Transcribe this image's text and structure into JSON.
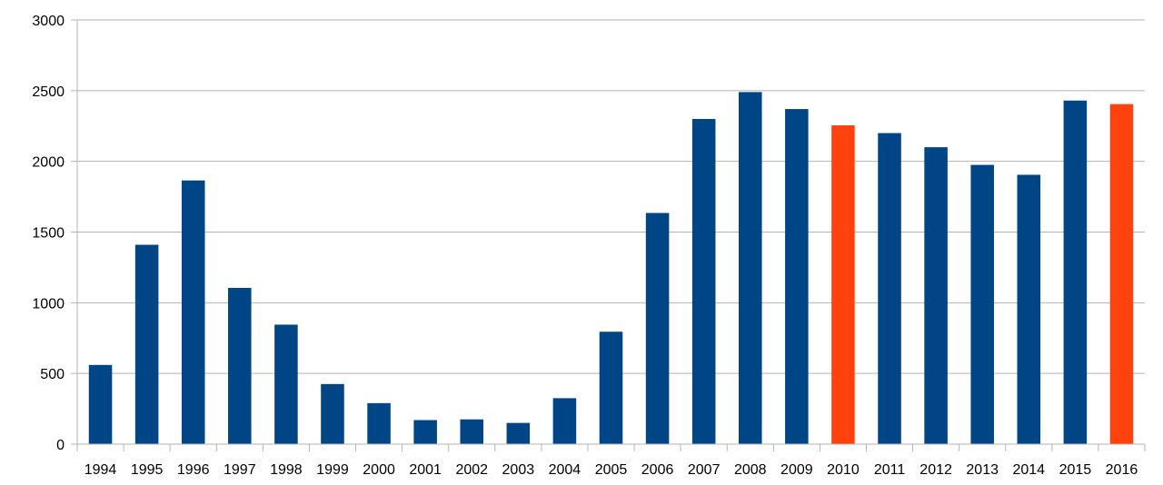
{
  "chart_data": {
    "type": "bar",
    "title": "",
    "xlabel": "",
    "ylabel": "",
    "categories": [
      "1994",
      "1995",
      "1996",
      "1997",
      "1998",
      "1999",
      "2000",
      "2001",
      "2002",
      "2003",
      "2004",
      "2005",
      "2006",
      "2007",
      "2008",
      "2009",
      "2010",
      "2011",
      "2012",
      "2013",
      "2014",
      "2015",
      "2016"
    ],
    "values": [
      560,
      1410,
      1865,
      1105,
      845,
      425,
      290,
      170,
      175,
      150,
      325,
      795,
      1635,
      2300,
      2490,
      2370,
      2255,
      2200,
      2100,
      1975,
      1905,
      2430,
      2405
    ],
    "highlighted": [
      "2010",
      "2016"
    ],
    "ylim": [
      0,
      3000
    ],
    "yticks": [
      0,
      500,
      1000,
      1500,
      2000,
      2500,
      3000
    ],
    "grid": true,
    "legend": "none",
    "colors": {
      "bar": "#004586",
      "highlight": "#ff420e"
    }
  }
}
